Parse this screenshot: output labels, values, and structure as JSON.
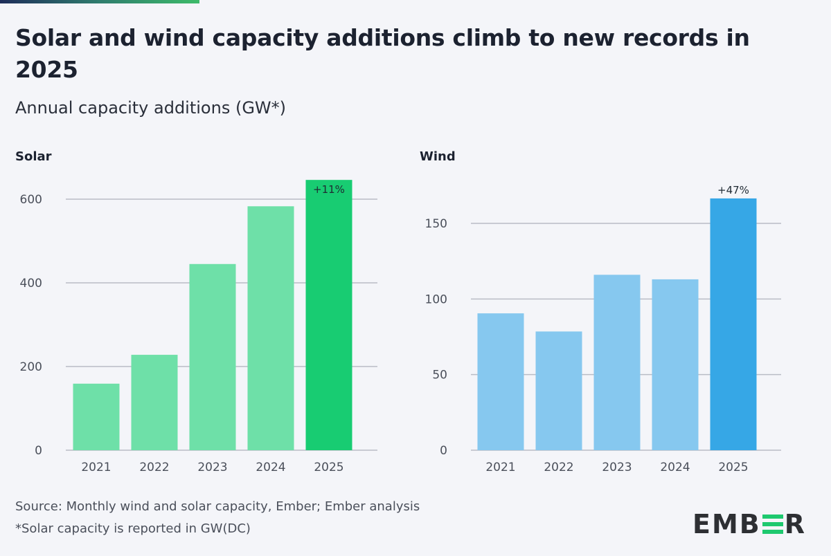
{
  "title": "Solar and wind capacity additions climb to new records in 2025",
  "subtitle": "Annual capacity additions (GW*)",
  "footer": {
    "source": "Source: Monthly wind and solar capacity, Ember; Ember analysis",
    "note": "*Solar capacity is reported in GW(DC)"
  },
  "logo": "EMBER",
  "chart_data": [
    {
      "type": "bar",
      "title": "Solar",
      "categories": [
        "2021",
        "2022",
        "2023",
        "2024",
        "2025"
      ],
      "values": [
        159,
        228,
        445,
        583,
        646
      ],
      "ylim": [
        0,
        660
      ],
      "yticks": [
        0,
        200,
        400,
        600
      ],
      "grid": true,
      "colors": [
        "#6ee0a8",
        "#6ee0a8",
        "#6ee0a8",
        "#6ee0a8",
        "#18cc72"
      ],
      "annotations": [
        {
          "category": "2025",
          "text": "+11%",
          "position": "inside-top"
        }
      ]
    },
    {
      "type": "bar",
      "title": "Wind",
      "categories": [
        "2021",
        "2022",
        "2023",
        "2024",
        "2025"
      ],
      "values": [
        90.5,
        78.5,
        116,
        113,
        166.5
      ],
      "ylim": [
        0,
        175
      ],
      "yticks": [
        0,
        50,
        100,
        150
      ],
      "grid": true,
      "colors": [
        "#86c8ef",
        "#86c8ef",
        "#86c8ef",
        "#86c8ef",
        "#36a7e6"
      ],
      "annotations": [
        {
          "category": "2025",
          "text": "+47%",
          "position": "above"
        }
      ]
    }
  ]
}
